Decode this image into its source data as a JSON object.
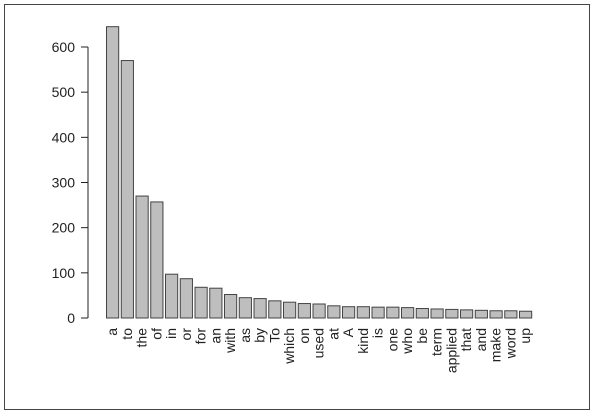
{
  "chart_data": {
    "type": "bar",
    "title": "",
    "xlabel": "",
    "ylabel": "",
    "ylim": [
      0,
      650
    ],
    "yticks": [
      0,
      100,
      200,
      300,
      400,
      500,
      600
    ],
    "grid": false,
    "bar_color": "#bebebe",
    "bar_edge_color": "#444444",
    "categories": [
      "a",
      "to",
      "the",
      "of",
      "in",
      "or",
      "for",
      "an",
      "with",
      "as",
      "by",
      "To",
      "which",
      "on",
      "used",
      "at",
      "A",
      "kind",
      "is",
      "one",
      "who",
      "be",
      "term",
      "applied",
      "that",
      "and",
      "make",
      "word",
      "up"
    ],
    "values": [
      645,
      570,
      270,
      257,
      97,
      87,
      68,
      66,
      52,
      45,
      43,
      38,
      35,
      32,
      31,
      27,
      25,
      25,
      24,
      24,
      23,
      21,
      20,
      19,
      18,
      17,
      16,
      16,
      15
    ]
  }
}
